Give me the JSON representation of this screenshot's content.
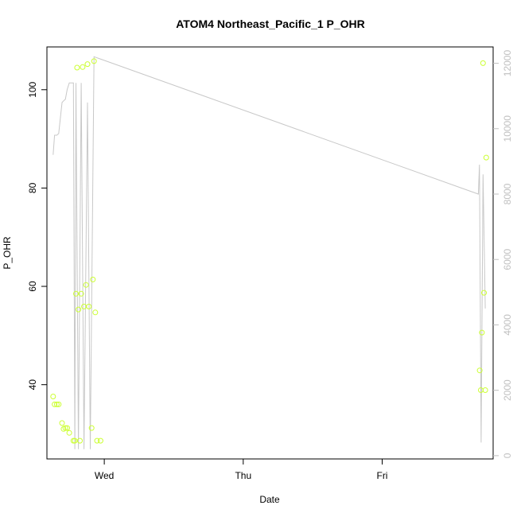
{
  "chart_data": {
    "type": "scatter",
    "title": "ATOM4 Northeast_Pacific_1 P_OHR",
    "xlabel": "Date",
    "ylabel": "P_OHR",
    "y2label": "",
    "xlim": [
      -0.4128,
      2.7986
    ],
    "ylim": [
      24.9,
      108.7
    ],
    "y2lim": [
      -100,
      12500
    ],
    "x_ticks": [
      {
        "value": 0,
        "label": "Wed"
      },
      {
        "value": 1,
        "label": "Thu"
      },
      {
        "value": 2,
        "label": "Fri"
      }
    ],
    "y_ticks": [
      40,
      60,
      80,
      100
    ],
    "y2_ticks": [
      0,
      2000,
      4000,
      6000,
      8000,
      10000,
      12000
    ],
    "grid": false,
    "legend": "none",
    "colors": {
      "points": "#ccff33",
      "line": "#c8c8c8",
      "axis": "#000000",
      "right_axis": "#c0c0c0"
    },
    "series": [
      {
        "name": "",
        "axis": "left",
        "type": "scatter",
        "points": [
          [
            -0.368,
            37.6
          ],
          [
            -0.358,
            36.0
          ],
          [
            -0.342,
            36.0
          ],
          [
            -0.328,
            36.0
          ],
          [
            -0.304,
            32.2
          ],
          [
            -0.293,
            31.0
          ],
          [
            -0.28,
            31.2
          ],
          [
            -0.267,
            31.2
          ],
          [
            -0.252,
            30.2
          ],
          [
            -0.222,
            28.6
          ],
          [
            -0.212,
            28.6
          ],
          [
            -0.204,
            58.5
          ],
          [
            -0.196,
            104.5
          ],
          [
            -0.186,
            55.3
          ],
          [
            -0.175,
            28.6
          ],
          [
            -0.166,
            58.5
          ],
          [
            -0.156,
            104.6
          ],
          [
            -0.146,
            55.9
          ],
          [
            -0.131,
            60.3
          ],
          [
            -0.121,
            105.2
          ],
          [
            -0.111,
            55.9
          ],
          [
            -0.091,
            31.2
          ],
          [
            -0.082,
            61.4
          ],
          [
            -0.074,
            105.8
          ],
          [
            -0.065,
            54.7
          ],
          [
            -0.052,
            28.6
          ],
          [
            -0.027,
            28.6
          ],
          [
            2.702,
            42.9
          ],
          [
            2.71,
            38.9
          ],
          [
            2.718,
            50.6
          ],
          [
            2.726,
            105.4
          ],
          [
            2.733,
            58.7
          ],
          [
            2.742,
            38.9
          ],
          [
            2.749,
            86.2
          ]
        ]
      },
      {
        "name": "",
        "axis": "right",
        "type": "line",
        "points": [
          [
            -0.368,
            9200
          ],
          [
            -0.358,
            9800
          ],
          [
            -0.342,
            9800
          ],
          [
            -0.328,
            9850
          ],
          [
            -0.304,
            10800
          ],
          [
            -0.293,
            10850
          ],
          [
            -0.28,
            10900
          ],
          [
            -0.267,
            11200
          ],
          [
            -0.252,
            11400
          ],
          [
            -0.222,
            11400
          ],
          [
            -0.212,
            200
          ],
          [
            -0.204,
            11400
          ],
          [
            -0.186,
            200
          ],
          [
            -0.166,
            11400
          ],
          [
            -0.146,
            200
          ],
          [
            -0.121,
            10800
          ],
          [
            -0.101,
            200
          ],
          [
            -0.074,
            12200
          ],
          [
            2.692,
            8000
          ],
          [
            2.7,
            8900
          ],
          [
            2.712,
            400
          ],
          [
            2.726,
            8600
          ],
          [
            2.742,
            4500
          ]
        ]
      }
    ]
  }
}
